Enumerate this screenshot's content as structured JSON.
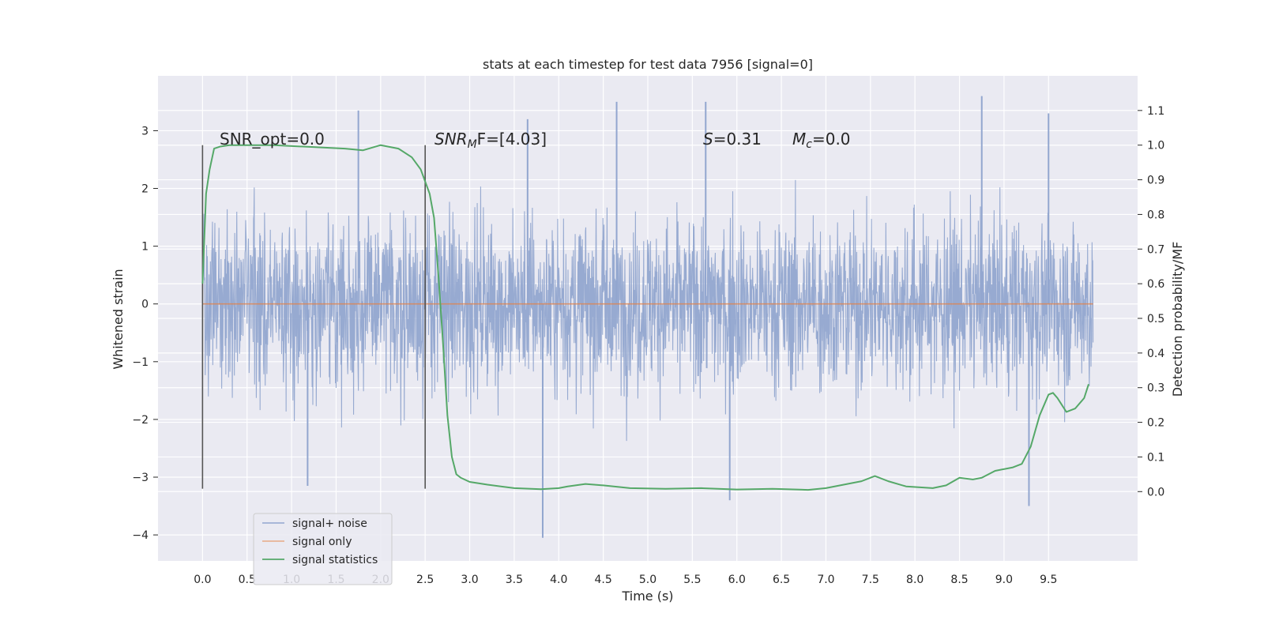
{
  "chart_data": {
    "type": "line",
    "title": "stats at each timestep for test data 7956 [signal=0]",
    "xlabel": "Time (s)",
    "ylabel": "Whitened strain",
    "y2label": "Detection probability/MF",
    "xlim": [
      -0.5,
      10.5
    ],
    "ylim": [
      -4.45,
      3.95
    ],
    "y2lim": [
      -0.2,
      1.2
    ],
    "x_ticks": [
      "0.0",
      "0.5",
      "1.0",
      "1.5",
      "2.0",
      "2.5",
      "3.0",
      "3.5",
      "4.0",
      "4.5",
      "5.0",
      "5.5",
      "6.0",
      "6.5",
      "7.0",
      "7.5",
      "8.0",
      "8.5",
      "9.0",
      "9.5"
    ],
    "y_ticks": [
      "3",
      "2",
      "1",
      "0",
      "−1",
      "−2",
      "−3",
      "−4"
    ],
    "y2_ticks": [
      "1.1",
      "1.0",
      "0.9",
      "0.8",
      "0.7",
      "0.6",
      "0.5",
      "0.4",
      "0.3",
      "0.2",
      "0.1",
      "0.0"
    ],
    "grid": true,
    "legend_position": "lower-left",
    "annotations": {
      "snr_opt": "SNR_opt=0.0",
      "snr_mf_base": "SNR",
      "snr_mf_sub": "M",
      "snr_mf_rest": "F=[4.03]",
      "s_sym": "S",
      "s_val": "=0.31",
      "mc_sym": "M",
      "mc_sub": "c",
      "mc_val": "=0.0"
    },
    "vertical_markers": [
      0.0,
      2.5
    ],
    "vertical_marker_range": [
      -3.2,
      2.75
    ],
    "series": [
      {
        "name": "signal+ noise",
        "color": "#92a6cf",
        "x_range": [
          0.0,
          10.0
        ],
        "envelope_positive_typical": 1.6,
        "envelope_negative_typical": -2.1,
        "peak_spikes": [
          {
            "x": 1.75,
            "y": 3.35
          },
          {
            "x": 3.65,
            "y": 3.2
          },
          {
            "x": 4.65,
            "y": 3.5
          },
          {
            "x": 5.65,
            "y": 3.5
          },
          {
            "x": 8.75,
            "y": 3.6
          },
          {
            "x": 9.5,
            "y": 3.3
          },
          {
            "x": 3.82,
            "y": -4.05
          },
          {
            "x": 9.28,
            "y": -3.5
          },
          {
            "x": 1.18,
            "y": -3.15
          },
          {
            "x": 5.92,
            "y": -3.4
          }
        ]
      },
      {
        "name": "signal only",
        "color": "#dd8452",
        "x": [
          0.0,
          10.0
        ],
        "y": [
          0.0,
          0.0
        ]
      },
      {
        "name": "signal statistics",
        "color": "#55a868",
        "axis": "right",
        "x": [
          0.0,
          0.04,
          0.08,
          0.13,
          0.2,
          0.3,
          0.5,
          0.8,
          1.2,
          1.6,
          1.8,
          2.0,
          2.2,
          2.35,
          2.45,
          2.55,
          2.6,
          2.65,
          2.7,
          2.75,
          2.8,
          2.85,
          2.9,
          3.0,
          3.2,
          3.5,
          3.8,
          4.0,
          4.1,
          4.3,
          4.5,
          4.8,
          5.2,
          5.6,
          6.0,
          6.4,
          6.8,
          7.0,
          7.2,
          7.4,
          7.55,
          7.7,
          7.9,
          8.2,
          8.35,
          8.5,
          8.65,
          8.75,
          8.9,
          9.1,
          9.2,
          9.3,
          9.4,
          9.5,
          9.55,
          9.6,
          9.7,
          9.8,
          9.9,
          9.95
        ],
        "y": [
          0.6,
          0.86,
          0.93,
          0.99,
          0.996,
          1.0,
          1.0,
          1.0,
          0.995,
          0.99,
          0.985,
          1.0,
          0.99,
          0.965,
          0.93,
          0.86,
          0.79,
          0.62,
          0.43,
          0.22,
          0.1,
          0.05,
          0.04,
          0.028,
          0.02,
          0.01,
          0.007,
          0.01,
          0.015,
          0.022,
          0.018,
          0.01,
          0.008,
          0.01,
          0.006,
          0.008,
          0.005,
          0.01,
          0.02,
          0.03,
          0.045,
          0.03,
          0.015,
          0.01,
          0.018,
          0.04,
          0.035,
          0.04,
          0.06,
          0.07,
          0.08,
          0.13,
          0.22,
          0.28,
          0.285,
          0.27,
          0.23,
          0.24,
          0.27,
          0.31
        ]
      }
    ]
  }
}
